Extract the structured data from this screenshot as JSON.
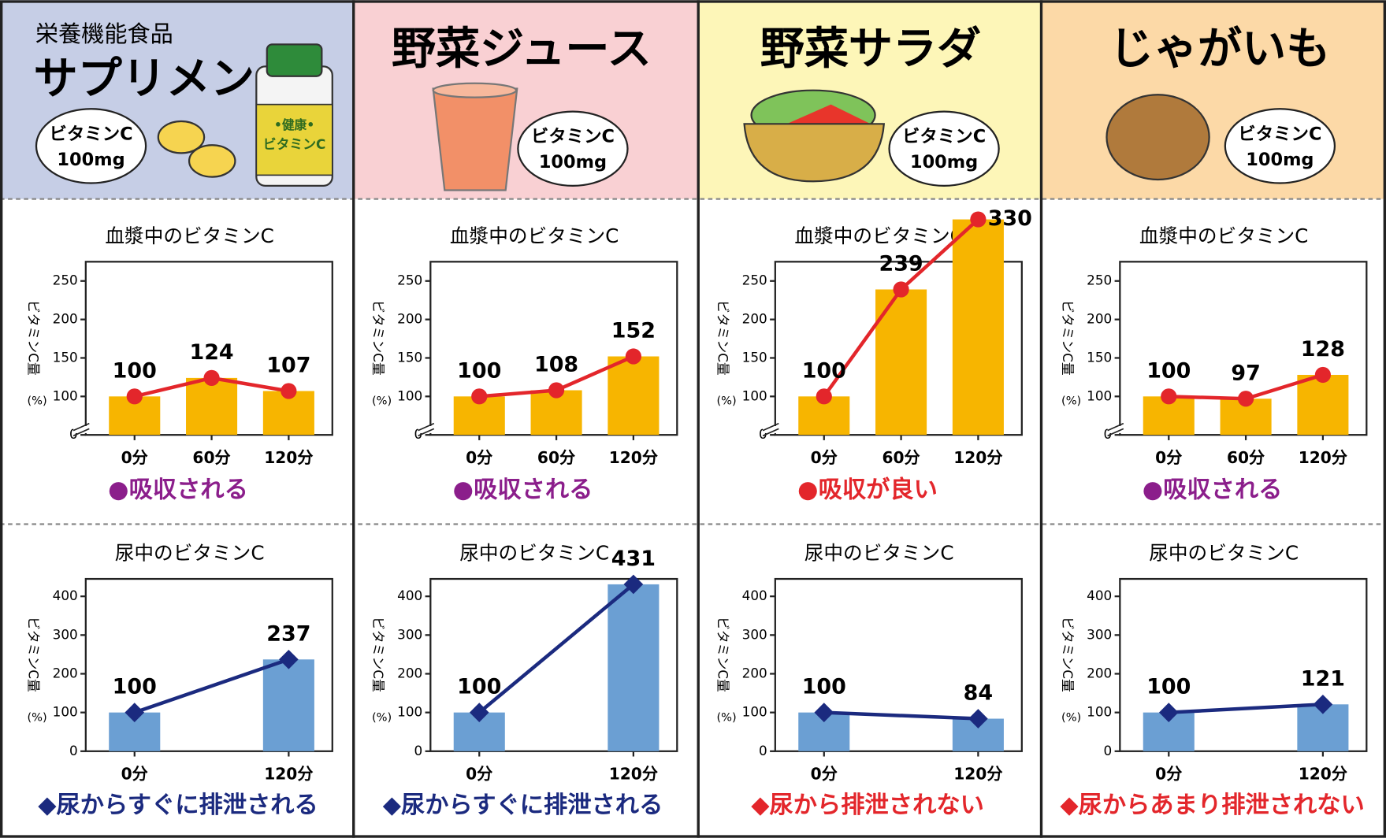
{
  "columns": [
    {
      "header": {
        "subtitle": "栄養機能食品",
        "title": "サプリメント",
        "badge": [
          "ビタミンC",
          "100mg"
        ],
        "bottle_label": [
          "•健康•",
          "ビタミンC"
        ]
      }
    },
    {
      "header": {
        "title": "野菜ジュース",
        "badge": [
          "ビタミンC",
          "100mg"
        ]
      }
    },
    {
      "header": {
        "title": "野菜サラダ",
        "badge": [
          "ビタミンC",
          "100mg"
        ]
      }
    },
    {
      "header": {
        "title": "じゃがいも",
        "badge": [
          "ビタミンC",
          "100mg"
        ]
      }
    }
  ],
  "chart_data": [
    {
      "type": "bar_line",
      "title": "血漿中のビタミンC",
      "y_label": "ビタミンC量",
      "y_unit": "(%)",
      "x": [
        0,
        60,
        120
      ],
      "xlim": [
        -38,
        154
      ],
      "xticks": [
        {
          "value": 0,
          "label": "0分"
        },
        {
          "value": 60,
          "label": "60分"
        },
        {
          "value": 120,
          "label": "120分"
        }
      ],
      "values": [
        100,
        124,
        107
      ],
      "ylim": [
        0,
        275
      ],
      "yticks": [
        0,
        100,
        150,
        200,
        250
      ],
      "axis_break": [
        0,
        50
      ],
      "bar_color": "#f7b500",
      "line_color": "#e3262b",
      "marker": "circle",
      "note": "●吸収される",
      "note_color": "#8b1e8b"
    },
    {
      "type": "bar_line",
      "title": "血漿中のビタミンC",
      "y_label": "ビタミンC量",
      "y_unit": "(%)",
      "x": [
        0,
        60,
        120
      ],
      "xlim": [
        -38,
        154
      ],
      "xticks": [
        {
          "value": 0,
          "label": "0分"
        },
        {
          "value": 60,
          "label": "60分"
        },
        {
          "value": 120,
          "label": "120分"
        }
      ],
      "values": [
        100,
        108,
        152
      ],
      "ylim": [
        0,
        275
      ],
      "yticks": [
        0,
        100,
        150,
        200,
        250
      ],
      "axis_break": [
        0,
        50
      ],
      "bar_color": "#f7b500",
      "line_color": "#e3262b",
      "marker": "circle",
      "note": "●吸収される",
      "note_color": "#8b1e8b"
    },
    {
      "type": "bar_line",
      "title": "血漿中のビタミンC",
      "y_label": "ビタミンC量",
      "y_unit": "(%)",
      "x": [
        0,
        60,
        120
      ],
      "xlim": [
        -38,
        154
      ],
      "xticks": [
        {
          "value": 0,
          "label": "0分"
        },
        {
          "value": 60,
          "label": "60分"
        },
        {
          "value": 120,
          "label": "120分"
        }
      ],
      "values": [
        100,
        239,
        330
      ],
      "ylim": [
        0,
        275
      ],
      "yticks": [
        0,
        100,
        150,
        200,
        250
      ],
      "axis_break": [
        0,
        50
      ],
      "bar_color": "#f7b500",
      "line_color": "#e3262b",
      "marker": "circle",
      "note": "●吸収が良い",
      "note_color": "#e3262b"
    },
    {
      "type": "bar_line",
      "title": "血漿中のビタミンC",
      "y_label": "ビタミンC量",
      "y_unit": "(%)",
      "x": [
        0,
        60,
        120
      ],
      "xlim": [
        -38,
        154
      ],
      "xticks": [
        {
          "value": 0,
          "label": "0分"
        },
        {
          "value": 60,
          "label": "60分"
        },
        {
          "value": 120,
          "label": "120分"
        }
      ],
      "values": [
        100,
        97,
        128
      ],
      "ylim": [
        0,
        275
      ],
      "yticks": [
        0,
        100,
        150,
        200,
        250
      ],
      "axis_break": [
        0,
        50
      ],
      "bar_color": "#f7b500",
      "line_color": "#e3262b",
      "marker": "circle",
      "note": "●吸収される",
      "note_color": "#8b1e8b"
    },
    {
      "type": "bar_line",
      "title": "尿中のビタミンC",
      "y_label": "ビタミンC量",
      "y_unit": "(%)",
      "x": [
        0,
        120
      ],
      "xlim": [
        -38,
        154
      ],
      "xticks": [
        {
          "value": 0,
          "label": "0分"
        },
        {
          "value": 120,
          "label": "120分"
        }
      ],
      "values": [
        100,
        237
      ],
      "ylim": [
        0,
        445
      ],
      "yticks": [
        0,
        100,
        200,
        300,
        400
      ],
      "bar_color": "#6b9fd3",
      "line_color": "#1b2a7f",
      "marker": "diamond",
      "note": "◆尿からすぐに排泄される",
      "note_color": "#1b2a7f"
    },
    {
      "type": "bar_line",
      "title": "尿中のビタミンC",
      "y_label": "ビタミンC量",
      "y_unit": "(%)",
      "x": [
        0,
        120
      ],
      "xlim": [
        -38,
        154
      ],
      "xticks": [
        {
          "value": 0,
          "label": "0分"
        },
        {
          "value": 120,
          "label": "120分"
        }
      ],
      "values": [
        100,
        431
      ],
      "ylim": [
        0,
        445
      ],
      "yticks": [
        0,
        100,
        200,
        300,
        400
      ],
      "bar_color": "#6b9fd3",
      "line_color": "#1b2a7f",
      "marker": "diamond",
      "note": "◆尿からすぐに排泄される",
      "note_color": "#1b2a7f"
    },
    {
      "type": "bar_line",
      "title": "尿中のビタミンC",
      "y_label": "ビタミンC量",
      "y_unit": "(%)",
      "x": [
        0,
        120
      ],
      "xlim": [
        -38,
        154
      ],
      "xticks": [
        {
          "value": 0,
          "label": "0分"
        },
        {
          "value": 120,
          "label": "120分"
        }
      ],
      "values": [
        100,
        84
      ],
      "ylim": [
        0,
        445
      ],
      "yticks": [
        0,
        100,
        200,
        300,
        400
      ],
      "bar_color": "#6b9fd3",
      "line_color": "#1b2a7f",
      "marker": "diamond",
      "note": "◆尿から排泄されない",
      "note_color": "#e3262b"
    },
    {
      "type": "bar_line",
      "title": "尿中のビタミンC",
      "y_label": "ビタミンC量",
      "y_unit": "(%)",
      "x": [
        0,
        120
      ],
      "xlim": [
        -38,
        154
      ],
      "xticks": [
        {
          "value": 0,
          "label": "0分"
        },
        {
          "value": 120,
          "label": "120分"
        }
      ],
      "values": [
        100,
        121
      ],
      "ylim": [
        0,
        445
      ],
      "yticks": [
        0,
        100,
        200,
        300,
        400
      ],
      "bar_color": "#6b9fd3",
      "line_color": "#1b2a7f",
      "marker": "diamond",
      "note": "◆尿からあまり排泄されない",
      "note_color": "#e3262b"
    }
  ]
}
